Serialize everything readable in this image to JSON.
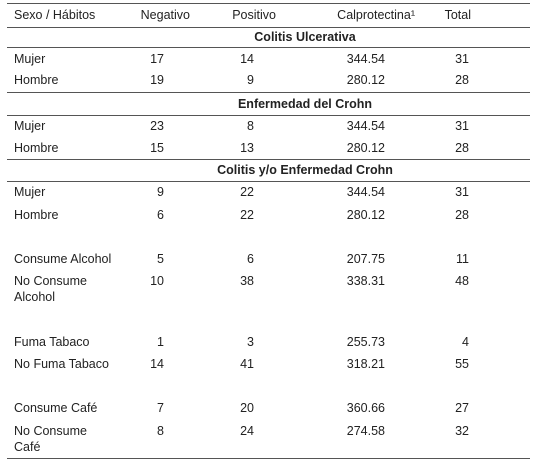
{
  "table": {
    "header": [
      "Sexo / Hábitos",
      "Negativo",
      "Positivo",
      "Calprotectina¹",
      "Total"
    ],
    "sections": [
      {
        "title": "Colitis Ulcerativa",
        "rows": [
          [
            "Mujer",
            17,
            14,
            344.54,
            31
          ],
          [
            "Hombre",
            19,
            9,
            280.12,
            28
          ]
        ]
      },
      {
        "title": "Enfermedad del Crohn",
        "rows": [
          [
            "Mujer",
            23,
            8,
            344.54,
            31
          ],
          [
            "Hombre",
            15,
            13,
            280.12,
            28
          ]
        ]
      },
      {
        "title": "Colitis y/o Enfermedad Crohn",
        "rows": [
          [
            "Mujer",
            9,
            22,
            344.54,
            31
          ],
          [
            "Hombre",
            6,
            22,
            280.12,
            28
          ],
          [
            "Consume Alcohol",
            5,
            6,
            207.75,
            11
          ],
          [
            "No Consume\nAlcohol",
            10,
            38,
            338.31,
            48
          ],
          [
            "Fuma Tabaco",
            1,
            3,
            255.73,
            4
          ],
          [
            "No Fuma Tabaco",
            14,
            41,
            318.21,
            55
          ],
          [
            "Consume Café",
            7,
            20,
            360.66,
            27
          ],
          [
            "No Consume\nCafé",
            8,
            24,
            274.58,
            32
          ]
        ]
      }
    ]
  }
}
